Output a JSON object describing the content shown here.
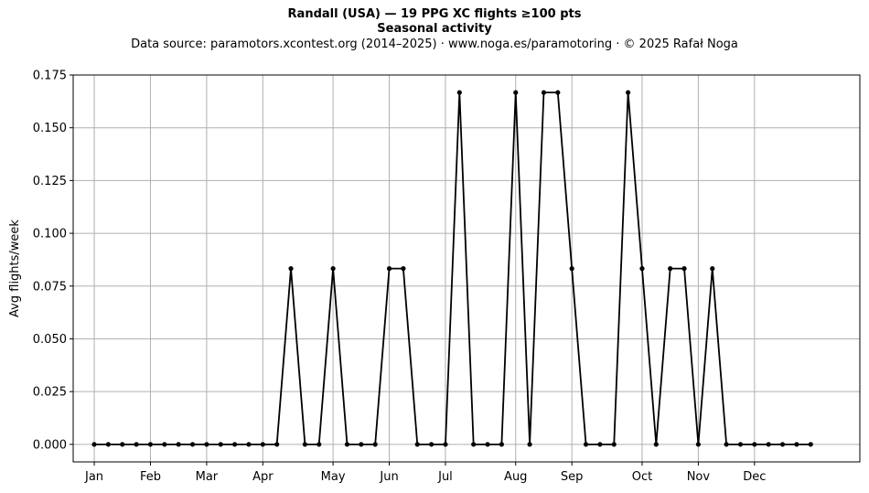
{
  "chart_data": {
    "type": "line",
    "title": "Randall (USA)  —  19 PPG XC flights ≥100 pts",
    "title2": "Seasonal activity",
    "subtitle": "Data source: paramotors.xcontest.org (2014–2025)  ·  www.noga.es/paramotoring  ·  © 2025 Rafał Noga",
    "xlabel": "",
    "ylabel": "Avg flights/week",
    "ylim": [
      -0.0083,
      0.175
    ],
    "yticks": [
      0.0,
      0.025,
      0.05,
      0.075,
      0.1,
      0.125,
      0.15,
      0.175
    ],
    "ytick_labels": [
      "0.000",
      "0.025",
      "0.050",
      "0.075",
      "0.100",
      "0.125",
      "0.150",
      "0.175"
    ],
    "xlim": [
      -1.5,
      54.5
    ],
    "xticks": [
      0,
      4,
      8,
      12,
      17,
      21,
      25,
      30,
      34,
      39,
      43,
      47
    ],
    "xtick_labels": [
      "Jan",
      "Feb",
      "Mar",
      "Apr",
      "May",
      "Jun",
      "Jul",
      "Aug",
      "Sep",
      "Oct",
      "Nov",
      "Dec"
    ],
    "grid": true,
    "line_color": "#000000",
    "grid_color": "#b0b0b0",
    "series": [
      {
        "x": [
          0,
          1,
          2,
          3,
          4,
          5,
          6,
          7,
          8,
          9,
          10,
          11,
          12,
          13,
          14,
          15,
          16,
          17,
          18,
          19,
          20,
          21,
          22,
          23,
          24,
          25,
          26,
          27,
          28,
          29,
          30,
          31,
          32,
          33,
          34,
          35,
          36,
          37,
          38,
          39,
          40,
          41,
          42,
          43,
          44,
          45,
          46,
          47,
          48,
          49,
          50,
          51
        ],
        "values": [
          0,
          0,
          0,
          0,
          0,
          0,
          0,
          0,
          0,
          0,
          0,
          0,
          0,
          0,
          0.0833,
          0,
          0,
          0.0833,
          0,
          0,
          0,
          0.0833,
          0.0833,
          0,
          0,
          0,
          0.1667,
          0,
          0,
          0,
          0.1667,
          0,
          0.1667,
          0.1667,
          0.0833,
          0,
          0,
          0,
          0.1667,
          0.0833,
          0,
          0.0833,
          0.0833,
          0,
          0.0833,
          0,
          0,
          0,
          0,
          0,
          0,
          0
        ]
      }
    ]
  }
}
